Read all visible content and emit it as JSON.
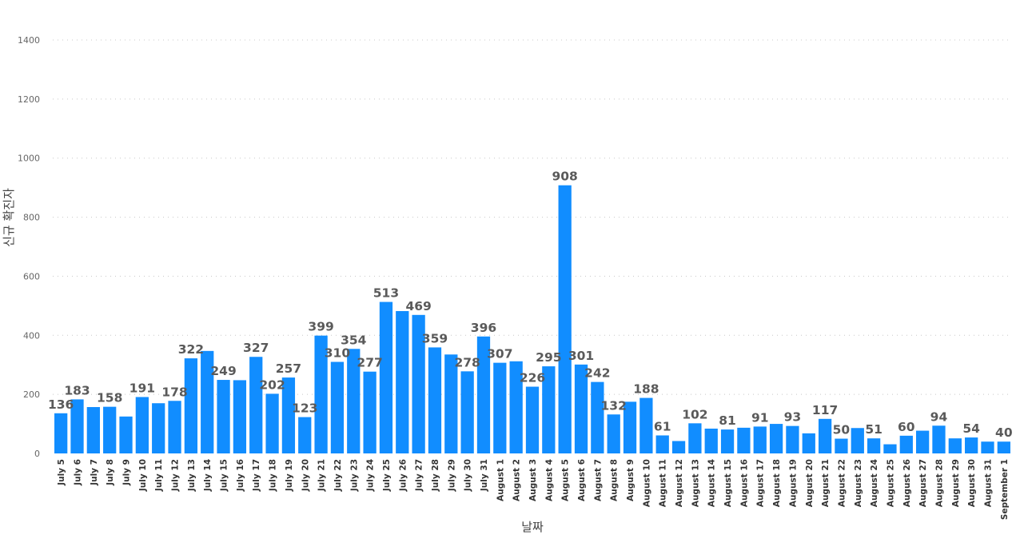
{
  "chart_data": {
    "type": "bar",
    "title": "",
    "xlabel": "날짜",
    "ylabel": "신규 확진자",
    "ylim": [
      0,
      1400
    ],
    "yticks": [
      0,
      200,
      400,
      600,
      800,
      1000,
      1200,
      1400
    ],
    "grid": true,
    "bar_color": "#118DFF",
    "categories": [
      "July 5",
      "July 6",
      "July 7",
      "July 8",
      "July 9",
      "July 10",
      "July 11",
      "July 12",
      "July 13",
      "July 14",
      "July 15",
      "July 16",
      "July 17",
      "July 18",
      "July 19",
      "July 20",
      "July 21",
      "July 22",
      "July 23",
      "July 24",
      "July 25",
      "July 26",
      "July 27",
      "July 28",
      "July 29",
      "July 30",
      "July 31",
      "August 1",
      "August 2",
      "August 3",
      "August 4",
      "August 5",
      "August 6",
      "August 7",
      "August 8",
      "August 9",
      "August 10",
      "August 11",
      "August 12",
      "August 13",
      "August 14",
      "August 15",
      "August 16",
      "August 17",
      "August 18",
      "August 19",
      "August 20",
      "August 21",
      "August 22",
      "August 23",
      "August 24",
      "August 25",
      "August 26",
      "August 27",
      "August 28",
      "August 29",
      "August 30",
      "August 31",
      "September 1"
    ],
    "values": [
      136,
      183,
      157,
      158,
      125,
      191,
      170,
      178,
      322,
      347,
      249,
      248,
      327,
      202,
      257,
      123,
      399,
      310,
      354,
      277,
      513,
      482,
      469,
      359,
      335,
      278,
      396,
      307,
      312,
      226,
      295,
      908,
      301,
      242,
      132,
      175,
      188,
      61,
      42,
      102,
      84,
      81,
      87,
      91,
      100,
      93,
      68,
      117,
      50,
      86,
      51,
      31,
      60,
      77,
      94,
      51,
      54,
      40,
      40
    ],
    "labels": [
      "136",
      "183",
      "",
      "158",
      "",
      "191",
      "",
      "178",
      "322",
      "",
      "249",
      "",
      "327",
      "202",
      "257",
      "123",
      "399",
      "310",
      "354",
      "277",
      "513",
      "",
      "469",
      "359",
      "",
      "278",
      "396",
      "307",
      "",
      "226",
      "295",
      "908",
      "301",
      "242",
      "132",
      "",
      "188",
      "61",
      "",
      "102",
      "",
      "81",
      "",
      "91",
      "",
      "93",
      "",
      "117",
      "50",
      "",
      "51",
      "",
      "60",
      "",
      "94",
      "",
      "54",
      "",
      "40"
    ]
  }
}
